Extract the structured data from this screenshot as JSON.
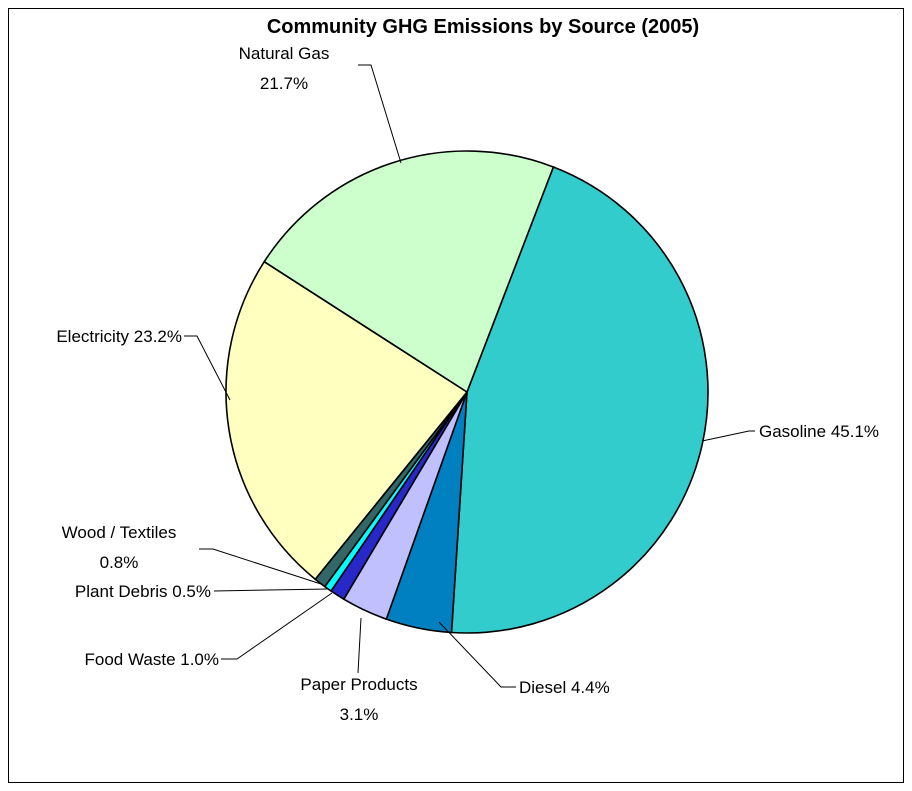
{
  "chart_data": {
    "type": "pie",
    "title": "Community GHG Emissions by Source (2005)",
    "start_angle_deg": 21,
    "direction": "clockwise",
    "slices": [
      {
        "name": "Gasoline",
        "pct_label": "45.1%",
        "value": 45.1,
        "color": "#33CCCC"
      },
      {
        "name": "Diesel",
        "pct_label": "4.4%",
        "value": 4.4,
        "color": "#0080C0"
      },
      {
        "name": "Paper Products",
        "pct_label": "3.1%",
        "value": 3.1,
        "color": "#C0C0FF"
      },
      {
        "name": "Food Waste",
        "pct_label": "1.0%",
        "value": 1.0,
        "color": "#2828C8"
      },
      {
        "name": "Plant Debris",
        "pct_label": "0.5%",
        "value": 0.5,
        "color": "#00FFFF"
      },
      {
        "name": "Wood / Textiles",
        "pct_label": "0.8%",
        "value": 0.8,
        "color": "#336666"
      },
      {
        "name": "Electricity",
        "pct_label": "23.2%",
        "value": 23.2,
        "color": "#FFFFC0"
      },
      {
        "name": "Natural Gas",
        "pct_label": "21.7%",
        "value": 21.7,
        "color": "#CCFFCC"
      }
    ],
    "labels": {
      "gasoline": "Gasoline 45.1%",
      "diesel": "Diesel 4.4%",
      "paper_line1": "Paper Products",
      "paper_line2": "3.1%",
      "food": "Food Waste 1.0%",
      "plant": "Plant Debris 0.5%",
      "wood_line1": "Wood / Textiles",
      "wood_line2": "0.8%",
      "electricity": "Electricity 23.2%",
      "natural_gas_line1": "Natural Gas",
      "natural_gas_line2": "21.7%"
    }
  }
}
